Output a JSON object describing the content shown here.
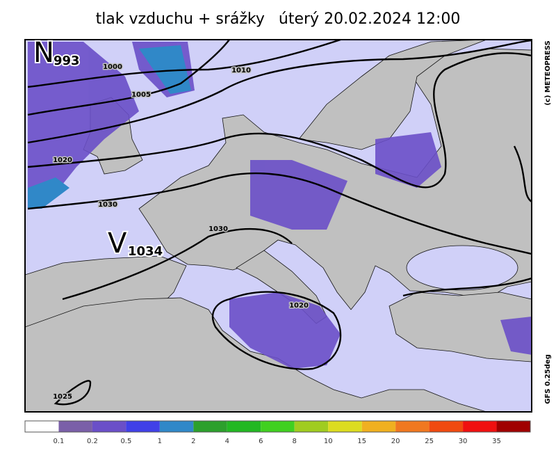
{
  "header": {
    "title": "tlak vzduchu + srážky",
    "datetime": "úterý 20.02.2024 12:00"
  },
  "copyright": "(c) METEOPRESS",
  "model": "GFS 0.25deg",
  "pressure_centers": [
    {
      "letter": "N",
      "value": 993
    },
    {
      "letter": "V",
      "value": 1034
    }
  ],
  "isobar_labels": [
    1000,
    1005,
    1010,
    1020,
    1030,
    1030,
    1020,
    1025
  ],
  "legend": {
    "ticks": [
      0.1,
      0.2,
      0.5,
      1,
      2,
      4,
      6,
      8,
      10,
      15,
      20,
      25,
      30,
      35
    ],
    "colors": [
      "#ffffff",
      "#7a5fa8",
      "#6a4fc8",
      "#4040e8",
      "#3088c8",
      "#2ca02c",
      "#22b822",
      "#40d020",
      "#a0cc20",
      "#dcdc20",
      "#f0b020",
      "#f07820",
      "#f04a10",
      "#f01010",
      "#a00000"
    ]
  }
}
